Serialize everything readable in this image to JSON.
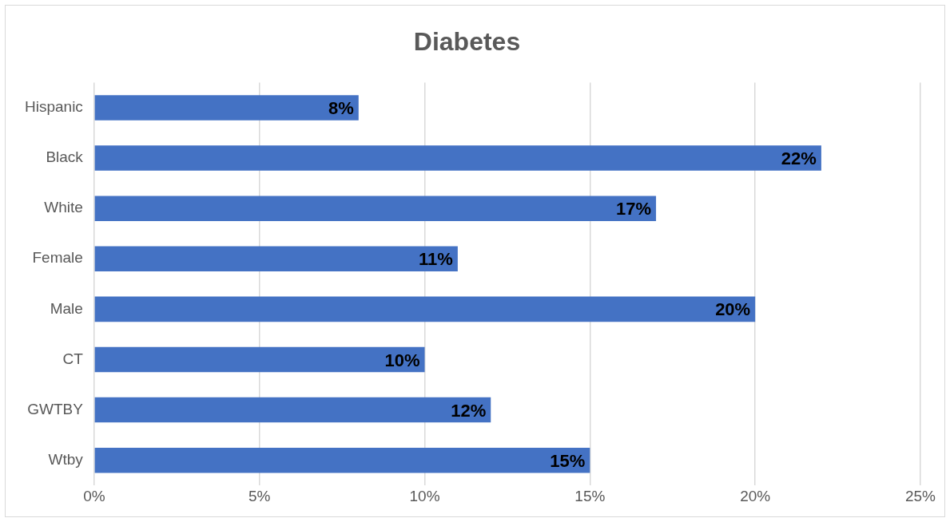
{
  "chart_data": {
    "type": "bar",
    "orientation": "horizontal",
    "title": "Diabetes",
    "categories": [
      "Hispanic",
      "Black",
      "White",
      "Female",
      "Male",
      "CT",
      "GWTBY",
      "Wtby"
    ],
    "values": [
      8,
      22,
      17,
      11,
      20,
      10,
      12,
      15
    ],
    "value_labels": [
      "8%",
      "22%",
      "17%",
      "11%",
      "20%",
      "10%",
      "12%",
      "15%"
    ],
    "color": "#4472c4",
    "xlim": [
      0,
      25
    ],
    "xticks": [
      {
        "value": 0,
        "label": "0%"
      },
      {
        "value": 5,
        "label": "5%"
      },
      {
        "value": 10,
        "label": "10%"
      },
      {
        "value": 15,
        "label": "15%"
      },
      {
        "value": 20,
        "label": "20%"
      },
      {
        "value": 25,
        "label": "25%"
      }
    ],
    "grid": "x",
    "legend": false
  }
}
